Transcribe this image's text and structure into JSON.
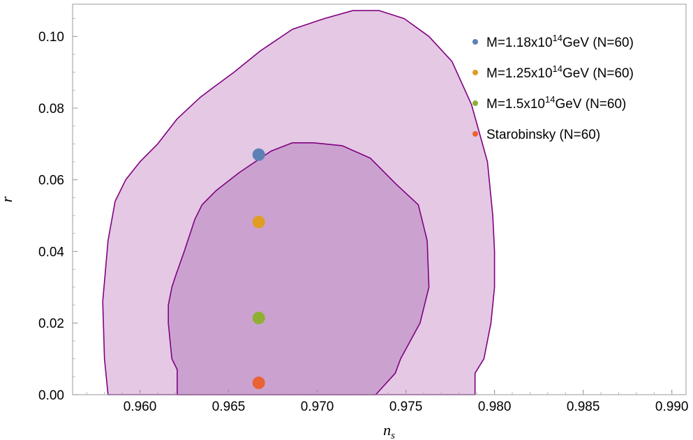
{
  "chart_data": {
    "type": "scatter",
    "xlabel_main": "n",
    "xlabel_sub": "s",
    "ylabel": "r",
    "xlim": [
      0.9562,
      0.9908
    ],
    "ylim": [
      0.0,
      0.109
    ],
    "x_ticks": [
      {
        "value": 0.96,
        "label": "0.960"
      },
      {
        "value": 0.965,
        "label": "0.965"
      },
      {
        "value": 0.97,
        "label": "0.970"
      },
      {
        "value": 0.975,
        "label": "0.975"
      },
      {
        "value": 0.98,
        "label": "0.980"
      },
      {
        "value": 0.985,
        "label": "0.985"
      },
      {
        "value": 0.99,
        "label": "0.990"
      }
    ],
    "y_ticks": [
      {
        "value": 0.0,
        "label": "0.00"
      },
      {
        "value": 0.02,
        "label": "0.02"
      },
      {
        "value": 0.04,
        "label": "0.04"
      },
      {
        "value": 0.06,
        "label": "0.06"
      },
      {
        "value": 0.08,
        "label": "0.08"
      },
      {
        "value": 0.1,
        "label": "0.10"
      }
    ],
    "grid": false,
    "legend_position": "top-right",
    "contours": [
      {
        "level": "outer",
        "fill": "#e4c8e4",
        "stroke": "#800080",
        "points": [
          [
            0.9582,
            0.0
          ],
          [
            0.958,
            0.01
          ],
          [
            0.9579,
            0.026
          ],
          [
            0.9582,
            0.043
          ],
          [
            0.9586,
            0.054
          ],
          [
            0.9592,
            0.06
          ],
          [
            0.96,
            0.065
          ],
          [
            0.961,
            0.07
          ],
          [
            0.9621,
            0.077
          ],
          [
            0.9634,
            0.083
          ],
          [
            0.9642,
            0.086
          ],
          [
            0.9653,
            0.09
          ],
          [
            0.9668,
            0.096
          ],
          [
            0.9686,
            0.102
          ],
          [
            0.9704,
            0.105
          ],
          [
            0.972,
            0.1072
          ],
          [
            0.9735,
            0.1072
          ],
          [
            0.9749,
            0.105
          ],
          [
            0.9763,
            0.1
          ],
          [
            0.9776,
            0.093
          ],
          [
            0.9787,
            0.081
          ],
          [
            0.9796,
            0.065
          ],
          [
            0.9799,
            0.05
          ],
          [
            0.98,
            0.04
          ],
          [
            0.98,
            0.03
          ],
          [
            0.9798,
            0.02
          ],
          [
            0.9794,
            0.01
          ],
          [
            0.9789,
            0.006
          ],
          [
            0.9789,
            0.0
          ]
        ]
      },
      {
        "level": "inner",
        "fill": "#cba2cf",
        "stroke": "#800080",
        "points": [
          [
            0.9621,
            0.0
          ],
          [
            0.9621,
            0.004
          ],
          [
            0.9621,
            0.007
          ],
          [
            0.9618,
            0.01
          ],
          [
            0.9617,
            0.015
          ],
          [
            0.9616,
            0.02
          ],
          [
            0.9616,
            0.025
          ],
          [
            0.9618,
            0.03
          ],
          [
            0.962,
            0.033
          ],
          [
            0.9625,
            0.04
          ],
          [
            0.9631,
            0.049
          ],
          [
            0.9635,
            0.053
          ],
          [
            0.9643,
            0.057
          ],
          [
            0.9656,
            0.062
          ],
          [
            0.9674,
            0.068
          ],
          [
            0.9686,
            0.0703
          ],
          [
            0.9698,
            0.0703
          ],
          [
            0.9714,
            0.0695
          ],
          [
            0.973,
            0.066
          ],
          [
            0.9744,
            0.059
          ],
          [
            0.9757,
            0.053
          ],
          [
            0.9762,
            0.043
          ],
          [
            0.9763,
            0.03
          ],
          [
            0.9758,
            0.02
          ],
          [
            0.9747,
            0.01
          ],
          [
            0.9744,
            0.006
          ],
          [
            0.9733,
            0.0
          ]
        ]
      }
    ],
    "series": [
      {
        "name": "M=1.18x10",
        "sup": "14",
        "unit": "GeV (N=60)",
        "color": "#5e81b5",
        "x": 0.9667,
        "y": 0.067
      },
      {
        "name": "M=1.25x10",
        "sup": "14",
        "unit": "GeV (N=60)",
        "color": "#e19c24",
        "x": 0.9667,
        "y": 0.0482
      },
      {
        "name": "M=1.5x10",
        "sup": "14",
        "unit": "GeV (N=60)",
        "color": "#8fb032",
        "x": 0.9667,
        "y": 0.0214
      },
      {
        "name": "Starobinsky (N=60)",
        "sup": "",
        "unit": "",
        "color": "#eb6235",
        "x": 0.9667,
        "y": 0.0033
      }
    ]
  }
}
